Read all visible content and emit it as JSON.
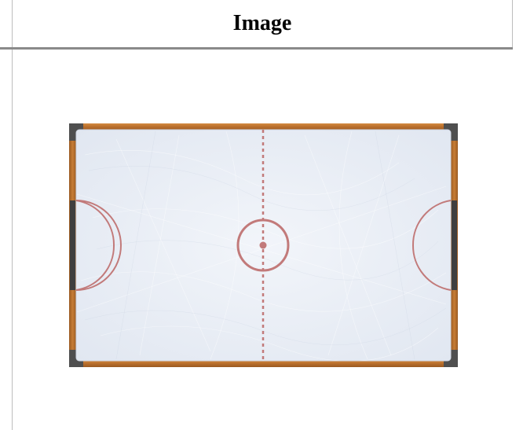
{
  "header": {
    "title": "Image"
  },
  "rink": {
    "description_name": "air-hockey-table",
    "colors": {
      "wood": "#c27a34",
      "wood_dark": "#8e5420",
      "ice": "#e8edf6",
      "line": "#c27878",
      "corner": "#555555",
      "goal": "#4a4a4a"
    }
  }
}
